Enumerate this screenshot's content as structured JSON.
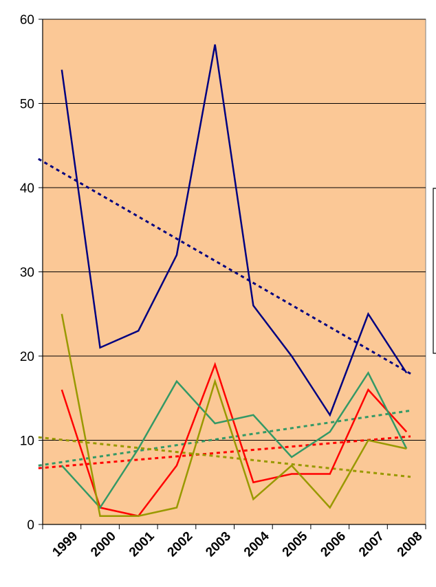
{
  "chart_data": {
    "type": "line",
    "categories": [
      "1999",
      "2000",
      "2001",
      "2002",
      "2003",
      "2004",
      "2005",
      "2006",
      "2007",
      "2008"
    ],
    "ylim": [
      0,
      60
    ],
    "yticks": [
      "0",
      "10",
      "20",
      "30",
      "40",
      "50",
      "60"
    ],
    "grid": true,
    "background_color": "#FBC896",
    "series": [
      {
        "color": "#000080",
        "values": [
          54,
          21,
          23,
          32,
          57,
          26,
          20,
          13,
          25,
          18
        ],
        "trend": [
          42.6,
          17.6
        ]
      },
      {
        "color": "#FF0000",
        "values": [
          16,
          2,
          1,
          7,
          19,
          5,
          6,
          6,
          16,
          11
        ],
        "trend": [
          6.8,
          10.5
        ]
      },
      {
        "color": "#339966",
        "values": [
          7,
          2,
          9,
          17,
          12,
          13,
          8,
          11,
          18,
          9
        ],
        "trend": [
          7.2,
          13.6
        ]
      },
      {
        "color": "#999900",
        "values": [
          25,
          1,
          1,
          2,
          17,
          3,
          7,
          2,
          10,
          9
        ],
        "trend": [
          10.2,
          5.6
        ]
      }
    ]
  }
}
